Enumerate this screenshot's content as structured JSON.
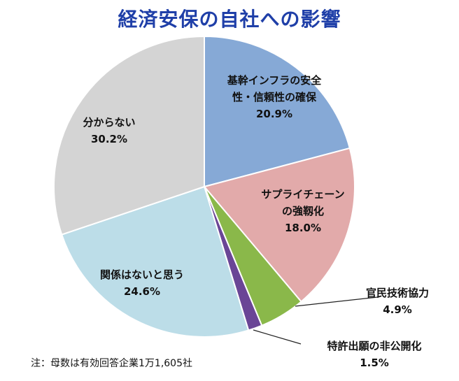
{
  "chart_data": {
    "type": "pie",
    "title": "経済安保の自社への影響",
    "note": "注：母数は有効回答企業1万1,605社",
    "slices": [
      {
        "label_lines": [
          "基幹インフラの安全",
          "性・信頼性の確保"
        ],
        "value": 20.9,
        "value_label": "20.9%",
        "color": "#86a9d6"
      },
      {
        "label_lines": [
          "サプライチェーン",
          "の強靱化"
        ],
        "value": 18.0,
        "value_label": "18.0%",
        "color": "#e2aaaa"
      },
      {
        "label_lines": [
          "官民技術協力"
        ],
        "value": 4.9,
        "value_label": "4.9%",
        "color": "#8ab84a"
      },
      {
        "label_lines": [
          "特許出願の非公開化"
        ],
        "value": 1.5,
        "value_label": "1.5%",
        "color": "#6a4596"
      },
      {
        "label_lines": [
          "関係はないと思う"
        ],
        "value": 24.6,
        "value_label": "24.6%",
        "color": "#bcdde8"
      },
      {
        "label_lines": [
          "分からない"
        ],
        "value": 30.2,
        "value_label": "30.2%",
        "color": "#d4d4d4"
      }
    ]
  }
}
